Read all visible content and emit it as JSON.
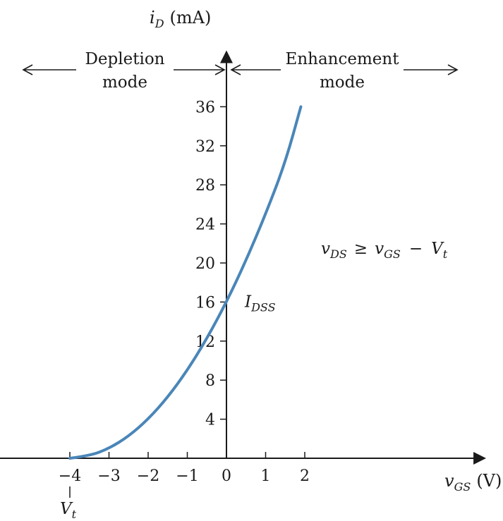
{
  "chart_data": {
    "type": "line",
    "xlabel": {
      "symbol": "v",
      "sub": "GS",
      "unit": "(V)"
    },
    "ylabel": {
      "symbol": "i",
      "sub": "D",
      "unit": "(mA)"
    },
    "xlim": [
      -5.8,
      6.6
    ],
    "ylim": [
      0,
      42
    ],
    "x_ticks": [
      -4,
      -3,
      -2,
      -1,
      0,
      1,
      2
    ],
    "x_tick_labels": [
      "−4",
      "−3",
      "−2",
      "−1",
      "0",
      "1",
      "2"
    ],
    "y_ticks": [
      4,
      8,
      12,
      16,
      20,
      24,
      28,
      32,
      36
    ],
    "y_tick_labels": [
      "4",
      "8",
      "12",
      "16",
      "20",
      "24",
      "28",
      "32",
      "36"
    ],
    "grid": false,
    "series": [
      {
        "color": "#4a86b8",
        "x": [
          -4,
          -3.5,
          -3,
          -2.5,
          -2,
          -1.5,
          -1,
          -0.5,
          0,
          0.5,
          1,
          1.5,
          1.9
        ],
        "y": [
          0,
          0.25,
          1,
          2.25,
          4,
          6.25,
          9,
          12.25,
          16,
          20.25,
          25,
          30.25,
          36
        ]
      }
    ],
    "regions": {
      "depletion": {
        "line1": "Depletion",
        "line2": "mode"
      },
      "enhancement": {
        "line1": "Enhancement",
        "line2": "mode"
      }
    },
    "annotations": {
      "idss": {
        "symbol": "I",
        "sub": "DSS",
        "x": 0,
        "y": 16
      },
      "vt": {
        "symbol": "V",
        "sub": "t",
        "x": -4
      },
      "condition": {
        "a": "v",
        "a_sub": "DS",
        "op1": "≥",
        "b": "v",
        "b_sub": "GS",
        "op2": "−",
        "c": "V",
        "c_sub": "t"
      }
    }
  }
}
